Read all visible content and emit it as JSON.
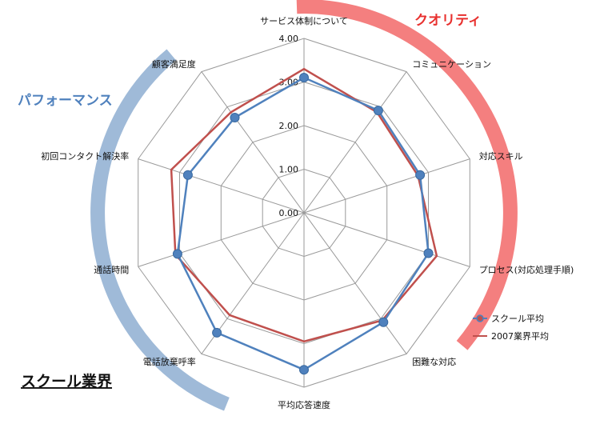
{
  "chart_data": {
    "type": "radar",
    "categories": [
      "サービス体制について",
      "コミュニケーション",
      "対応スキル",
      "プロセス(対応処理手順)",
      "困難な対応",
      "平均応答速度",
      "電話放棄呼率",
      "通話時間",
      "初回コンタクト解決率",
      "顧客満足度"
    ],
    "series": [
      {
        "name": "スクール平均",
        "color": "#4f81bd",
        "values": [
          3.1,
          2.9,
          2.8,
          3.0,
          3.1,
          3.6,
          3.4,
          3.05,
          2.8,
          2.7
        ]
      },
      {
        "name": "2007業界平均",
        "color": "#c0504d",
        "values": [
          3.3,
          2.85,
          2.75,
          3.2,
          3.05,
          2.95,
          2.9,
          3.1,
          3.2,
          2.85
        ]
      }
    ],
    "ticks": [
      "0.00",
      "1.00",
      "2.00",
      "3.00",
      "4.00"
    ],
    "rmax": 4,
    "grid": true,
    "legend_position": "bottom-right",
    "groups": [
      {
        "name": "クオリティ",
        "color": "#f15b5b",
        "band_color": "#f47f7f"
      },
      {
        "name": "パフォーマンス",
        "color": "#4f81bd",
        "band_color": "#9fbad8"
      }
    ],
    "corner_label": "スクール業界"
  }
}
